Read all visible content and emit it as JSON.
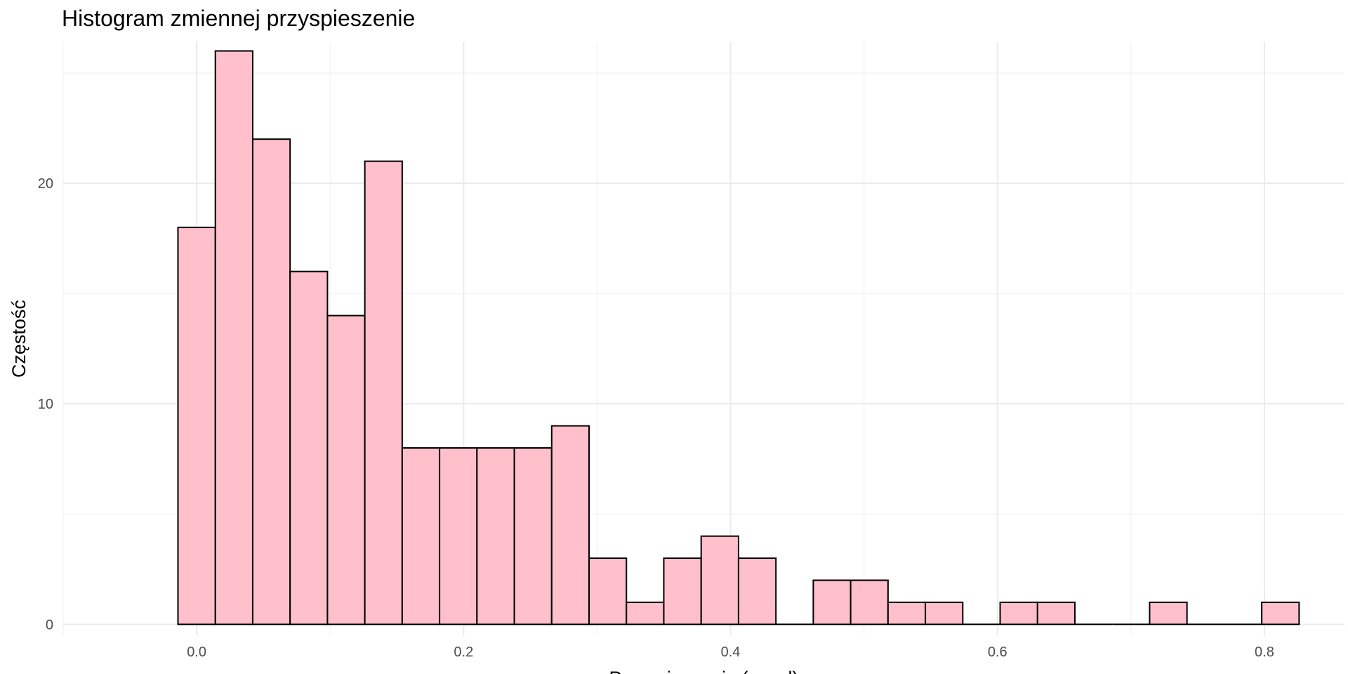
{
  "chart_data": {
    "type": "bar",
    "subtype": "histogram",
    "title": "Histogram zmiennej przyspieszenie",
    "xlabel": "Przyspieszenie (accel)",
    "ylabel": "Częstość",
    "xlim": [
      -0.1,
      0.86
    ],
    "ylim": [
      -0.5,
      26.4
    ],
    "x_ticks": [
      0.0,
      0.2,
      0.4,
      0.6,
      0.8
    ],
    "x_tick_labels": [
      "0.0",
      "0.2",
      "0.4",
      "0.6",
      "0.8"
    ],
    "y_ticks": [
      0,
      10,
      20
    ],
    "y_tick_labels": [
      "0",
      "10",
      "20"
    ],
    "grid": true,
    "legend": "none",
    "fill_color": "#FFC0CB",
    "edge_color": "#000000",
    "bins": [
      {
        "x0": -0.014,
        "x1": 0.014,
        "count": 18
      },
      {
        "x0": 0.014,
        "x1": 0.042,
        "count": 26
      },
      {
        "x0": 0.042,
        "x1": 0.07,
        "count": 22
      },
      {
        "x0": 0.07,
        "x1": 0.098,
        "count": 16
      },
      {
        "x0": 0.098,
        "x1": 0.126,
        "count": 14
      },
      {
        "x0": 0.126,
        "x1": 0.154,
        "count": 21
      },
      {
        "x0": 0.154,
        "x1": 0.182,
        "count": 8
      },
      {
        "x0": 0.182,
        "x1": 0.21,
        "count": 8
      },
      {
        "x0": 0.21,
        "x1": 0.238,
        "count": 8
      },
      {
        "x0": 0.238,
        "x1": 0.266,
        "count": 8
      },
      {
        "x0": 0.266,
        "x1": 0.294,
        "count": 9
      },
      {
        "x0": 0.294,
        "x1": 0.322,
        "count": 3
      },
      {
        "x0": 0.322,
        "x1": 0.35,
        "count": 1
      },
      {
        "x0": 0.35,
        "x1": 0.378,
        "count": 3
      },
      {
        "x0": 0.378,
        "x1": 0.406,
        "count": 4
      },
      {
        "x0": 0.406,
        "x1": 0.434,
        "count": 3
      },
      {
        "x0": 0.434,
        "x1": 0.462,
        "count": 0
      },
      {
        "x0": 0.462,
        "x1": 0.49,
        "count": 2
      },
      {
        "x0": 0.49,
        "x1": 0.518,
        "count": 2
      },
      {
        "x0": 0.518,
        "x1": 0.546,
        "count": 1
      },
      {
        "x0": 0.546,
        "x1": 0.574,
        "count": 1
      },
      {
        "x0": 0.574,
        "x1": 0.602,
        "count": 0
      },
      {
        "x0": 0.602,
        "x1": 0.63,
        "count": 1
      },
      {
        "x0": 0.63,
        "x1": 0.658,
        "count": 1
      },
      {
        "x0": 0.658,
        "x1": 0.686,
        "count": 0
      },
      {
        "x0": 0.686,
        "x1": 0.714,
        "count": 0
      },
      {
        "x0": 0.714,
        "x1": 0.742,
        "count": 1
      },
      {
        "x0": 0.742,
        "x1": 0.77,
        "count": 0
      },
      {
        "x0": 0.77,
        "x1": 0.798,
        "count": 0
      },
      {
        "x0": 0.798,
        "x1": 0.826,
        "count": 1
      }
    ]
  }
}
